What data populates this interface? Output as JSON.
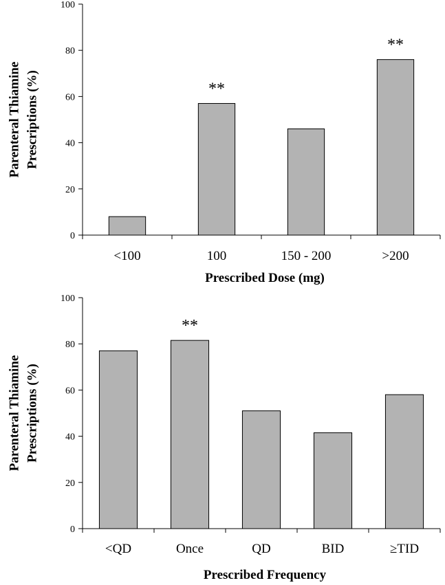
{
  "chart_data": [
    {
      "type": "bar",
      "categories": [
        "<100",
        "100",
        "150 - 200",
        ">200"
      ],
      "values": [
        8,
        57,
        46,
        76
      ],
      "significance": [
        "",
        "**",
        "",
        "**"
      ],
      "xlabel": "Prescribed Dose (mg)",
      "ylabel_lines": [
        "Parenteral Thiamine",
        "Prescriptions (%)"
      ],
      "ylim": [
        0,
        100
      ],
      "yticks": [
        "0",
        "20",
        "40",
        "60",
        "80",
        "100"
      ],
      "colors": {
        "bar": "#b3b3b3",
        "edge": "#000000"
      },
      "grid": false,
      "legend": "none"
    },
    {
      "type": "bar",
      "categories": [
        "<QD",
        "Once",
        "QD",
        "BID",
        "≥TID"
      ],
      "values": [
        77,
        81.5,
        51,
        41.5,
        58
      ],
      "significance": [
        "",
        "**",
        "",
        "",
        ""
      ],
      "xlabel": "Prescribed Frequency",
      "ylabel_lines": [
        "Parenteral Thiamine",
        "Prescriptions (%)"
      ],
      "ylim": [
        0,
        100
      ],
      "yticks": [
        "0",
        "20",
        "40",
        "60",
        "80",
        "100"
      ],
      "colors": {
        "bar": "#b3b3b3",
        "edge": "#000000"
      },
      "grid": false,
      "legend": "none"
    }
  ]
}
